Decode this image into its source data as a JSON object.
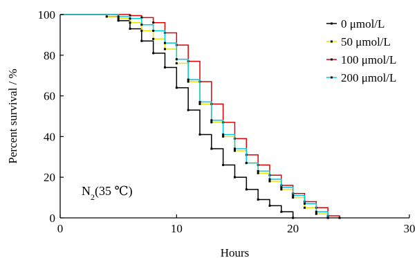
{
  "chart_data": {
    "type": "line",
    "step": true,
    "xlabel": "Hours",
    "ylabel": "Percent survival / %",
    "xlim": [
      0,
      30
    ],
    "ylim": [
      0,
      100
    ],
    "xticks": [
      0,
      10,
      20,
      30
    ],
    "yticks": [
      0,
      20,
      40,
      60,
      80,
      100
    ],
    "grid": false,
    "legend_position": "top-right",
    "annotation": {
      "main": "N",
      "sub": "2",
      "rest": "(35 ℃)"
    },
    "series": [
      {
        "name": "0 μmol/L",
        "color": "#000000",
        "x": [
          0,
          4,
          5,
          6,
          7,
          8,
          9,
          10,
          11,
          12,
          13,
          14,
          15,
          16,
          17,
          18,
          19,
          20
        ],
        "y": [
          100,
          99,
          97,
          93,
          87,
          81,
          74,
          64,
          53,
          41,
          34,
          26,
          20,
          14,
          9,
          6,
          3,
          0
        ]
      },
      {
        "name": "50 μmol/L",
        "color": "#e6e600",
        "x": [
          0,
          4,
          5,
          6,
          7,
          8,
          9,
          10,
          11,
          12,
          13,
          14,
          15,
          16,
          17,
          18,
          19,
          20,
          21,
          22,
          23
        ],
        "y": [
          100,
          99,
          98,
          96,
          92,
          88,
          83,
          76,
          67,
          56,
          47,
          40,
          33,
          27,
          22,
          18,
          14,
          10,
          5,
          2,
          0
        ]
      },
      {
        "name": "100 μmol/L",
        "color": "#e00000",
        "x": [
          0,
          6,
          7,
          8,
          9,
          10,
          11,
          12,
          13,
          14,
          15,
          16,
          17,
          18,
          19,
          20,
          21,
          22,
          23,
          24
        ],
        "y": [
          100,
          99.5,
          98.5,
          96,
          91,
          85,
          77,
          67,
          56,
          47,
          39,
          31,
          26,
          21,
          16,
          12,
          8,
          5,
          1,
          0
        ]
      },
      {
        "name": "200 μmol/L",
        "color": "#00c8dc",
        "x": [
          0,
          5,
          6,
          7,
          8,
          9,
          10,
          11,
          12,
          13,
          14,
          15,
          16,
          17,
          18,
          19,
          20,
          21,
          22,
          23
        ],
        "y": [
          100,
          99,
          98,
          95,
          92,
          86,
          78,
          68,
          57,
          48,
          41,
          34,
          27,
          23,
          19,
          15,
          11,
          7,
          3,
          0
        ]
      }
    ]
  }
}
